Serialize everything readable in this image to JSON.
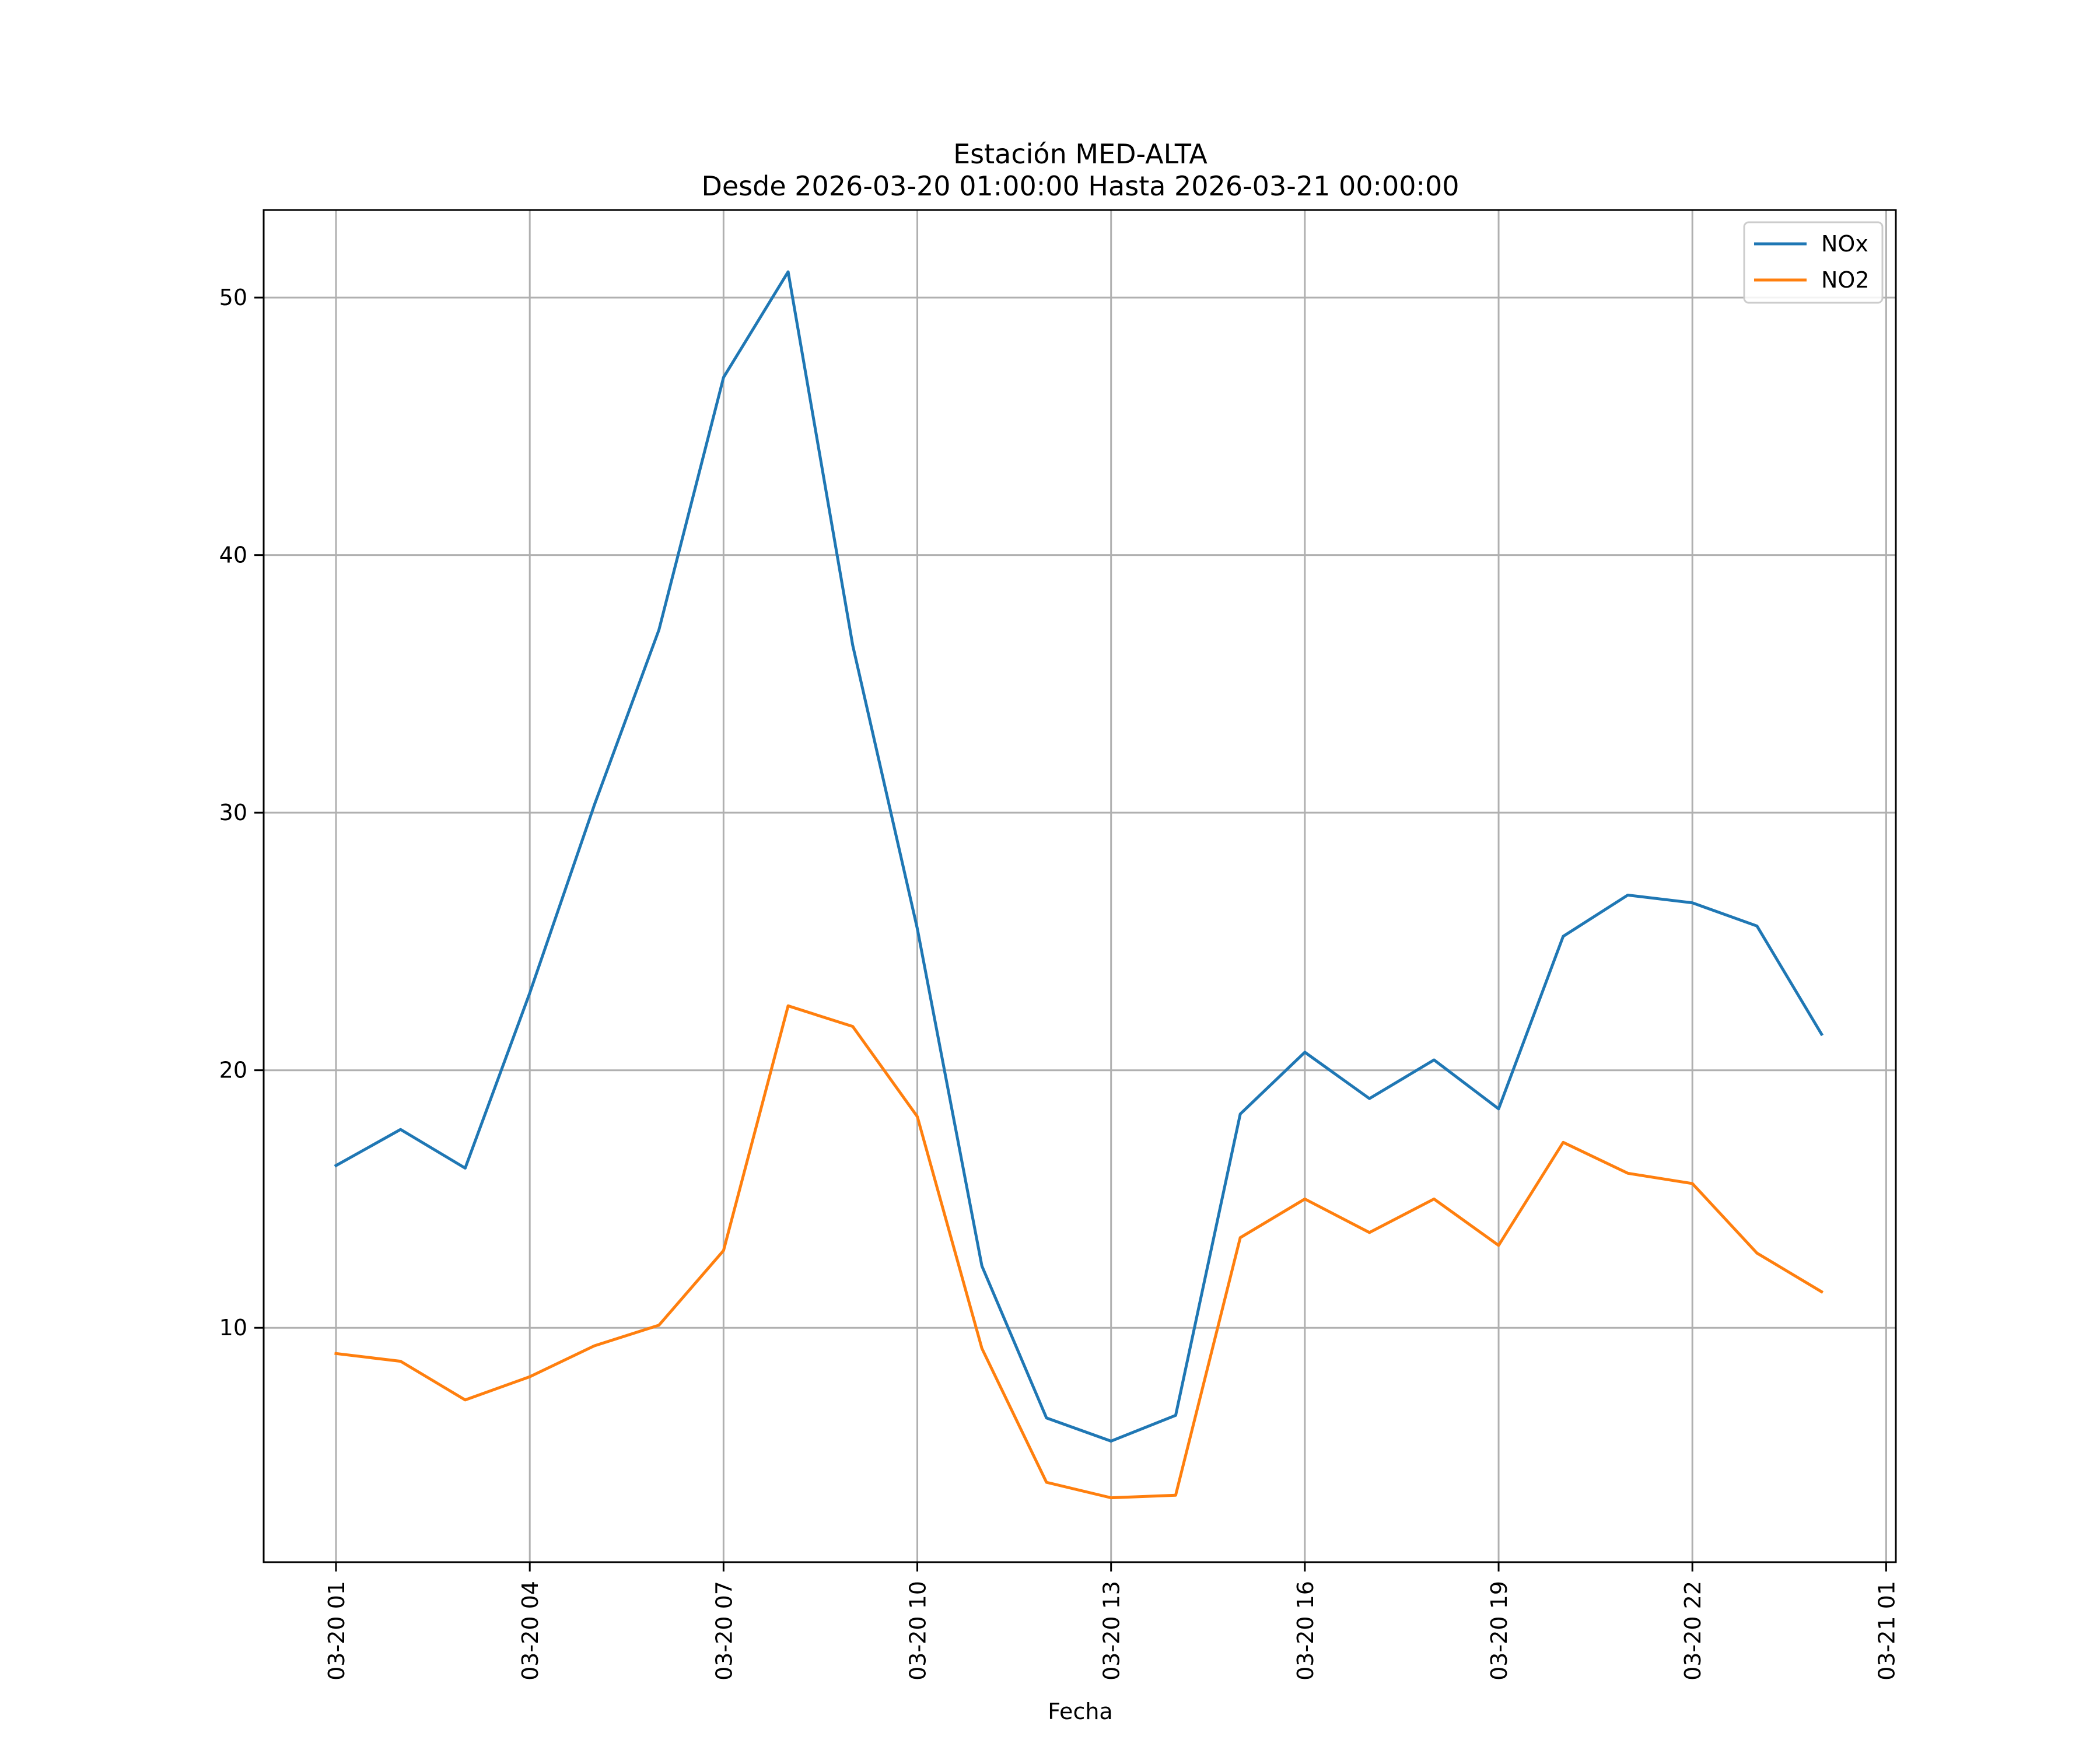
{
  "chart_data": {
    "type": "line",
    "title": "Estación MED-ALTA",
    "subtitle": "Desde 2026-03-20 01:00:00 Hasta 2026-03-21 00:00:00",
    "xlabel": "Fecha",
    "ylabel": "",
    "x_hours": [
      1,
      2,
      3,
      4,
      5,
      6,
      7,
      8,
      9,
      10,
      11,
      12,
      13,
      14,
      15,
      16,
      17,
      18,
      19,
      20,
      21,
      22,
      23,
      24
    ],
    "xlim": [
      -0.12,
      25.15
    ],
    "ylim": [
      0.9,
      53.4
    ],
    "xticks": [
      {
        "hour": 1,
        "label": "03-20 01"
      },
      {
        "hour": 4,
        "label": "03-20 04"
      },
      {
        "hour": 7,
        "label": "03-20 07"
      },
      {
        "hour": 10,
        "label": "03-20 10"
      },
      {
        "hour": 13,
        "label": "03-20 13"
      },
      {
        "hour": 16,
        "label": "03-20 16"
      },
      {
        "hour": 19,
        "label": "03-20 19"
      },
      {
        "hour": 22,
        "label": "03-20 22"
      },
      {
        "hour": 25,
        "label": "03-21 01"
      }
    ],
    "yticks": [
      10,
      20,
      30,
      40,
      50
    ],
    "grid": true,
    "legend_position": "top-right",
    "series": [
      {
        "name": "NOx",
        "color": "#1f77b4",
        "values": [
          16.3,
          17.7,
          16.2,
          23.0,
          30.3,
          37.1,
          46.9,
          51.0,
          36.5,
          25.5,
          12.4,
          6.5,
          5.6,
          6.6,
          18.3,
          20.7,
          18.9,
          20.4,
          18.5,
          25.2,
          26.8,
          26.5,
          25.6,
          21.4
        ]
      },
      {
        "name": "NO2",
        "color": "#ff7f0e",
        "values": [
          9.0,
          8.7,
          7.2,
          8.1,
          9.3,
          10.1,
          13.0,
          22.5,
          21.7,
          18.2,
          9.2,
          4.0,
          3.4,
          3.5,
          13.5,
          15.0,
          13.7,
          15.0,
          13.2,
          17.2,
          16.0,
          15.6,
          12.9,
          11.4
        ]
      }
    ]
  }
}
